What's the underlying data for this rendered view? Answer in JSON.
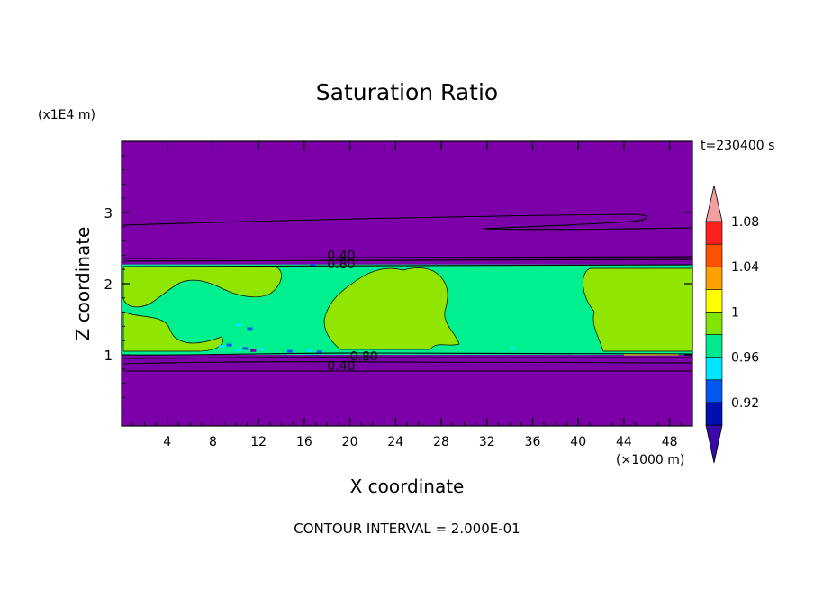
{
  "chart_data": {
    "type": "heatmap",
    "title": "Saturation Ratio",
    "xlabel": "X coordinate",
    "ylabel": "Z coordinate",
    "x_unit": "(×1000 m)",
    "y_unit": "(x1E4 m)",
    "time_label": "t=230400 s",
    "footer": "CONTOUR INTERVAL = 2.000E-01",
    "xlim": [
      0,
      50
    ],
    "ylim": [
      0,
      4
    ],
    "x_ticks": [
      4,
      8,
      12,
      16,
      20,
      24,
      28,
      32,
      36,
      40,
      44,
      48
    ],
    "y_ticks": [
      1,
      2,
      3
    ],
    "colorbar": {
      "levels": [
        0.92,
        0.96,
        1,
        1.04,
        1.08
      ],
      "level_labels": [
        "0.92",
        "0.96",
        "1",
        "1.04",
        "1.08"
      ],
      "colors": [
        "#3a0aa8",
        "#0010b0",
        "#0058f0",
        "#00e6ff",
        "#00e890",
        "#80e600",
        "#ffff00",
        "#ffa000",
        "#ff5000",
        "#ff2020",
        "#f4a0a0"
      ]
    },
    "regions": {
      "background_color": "#7b00a8",
      "cloud_layer_color": "#00f090",
      "cloud_layer_z": [
        1.0,
        2.27
      ],
      "supersaturated_color": "#90e600"
    },
    "contour_labels": [
      {
        "text": "0.40",
        "x": 18,
        "z": 2.4
      },
      {
        "text": "0.80",
        "x": 18,
        "z": 2.28
      },
      {
        "text": "0.80",
        "x": 20,
        "z": 0.98
      },
      {
        "text": "0.40",
        "x": 18,
        "z": 0.85
      }
    ]
  }
}
